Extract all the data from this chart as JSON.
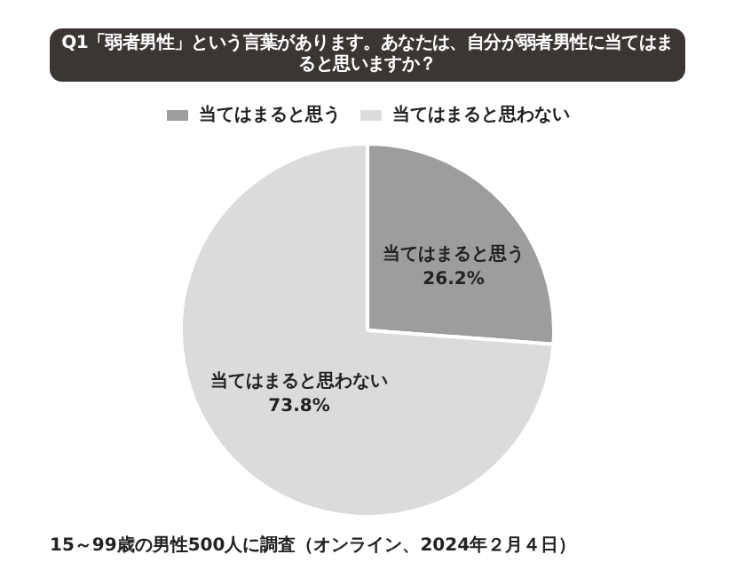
{
  "chart_data": {
    "type": "pie",
    "title": "Q1「弱者男性」という言葉があります。あなたは、自分が弱者男性に当てはまると思いますか？",
    "categories": [
      "当てはまると思う",
      "当てはまると思わない"
    ],
    "values": [
      26.2,
      73.8
    ],
    "colors": [
      "#9d9d9d",
      "#dbdbdb"
    ],
    "value_labels": [
      "26.2%",
      "73.8%"
    ],
    "legend": "top",
    "annotations": [
      "15～99歳の男性500人に調査（オンライン、2024年２月４日）"
    ]
  }
}
